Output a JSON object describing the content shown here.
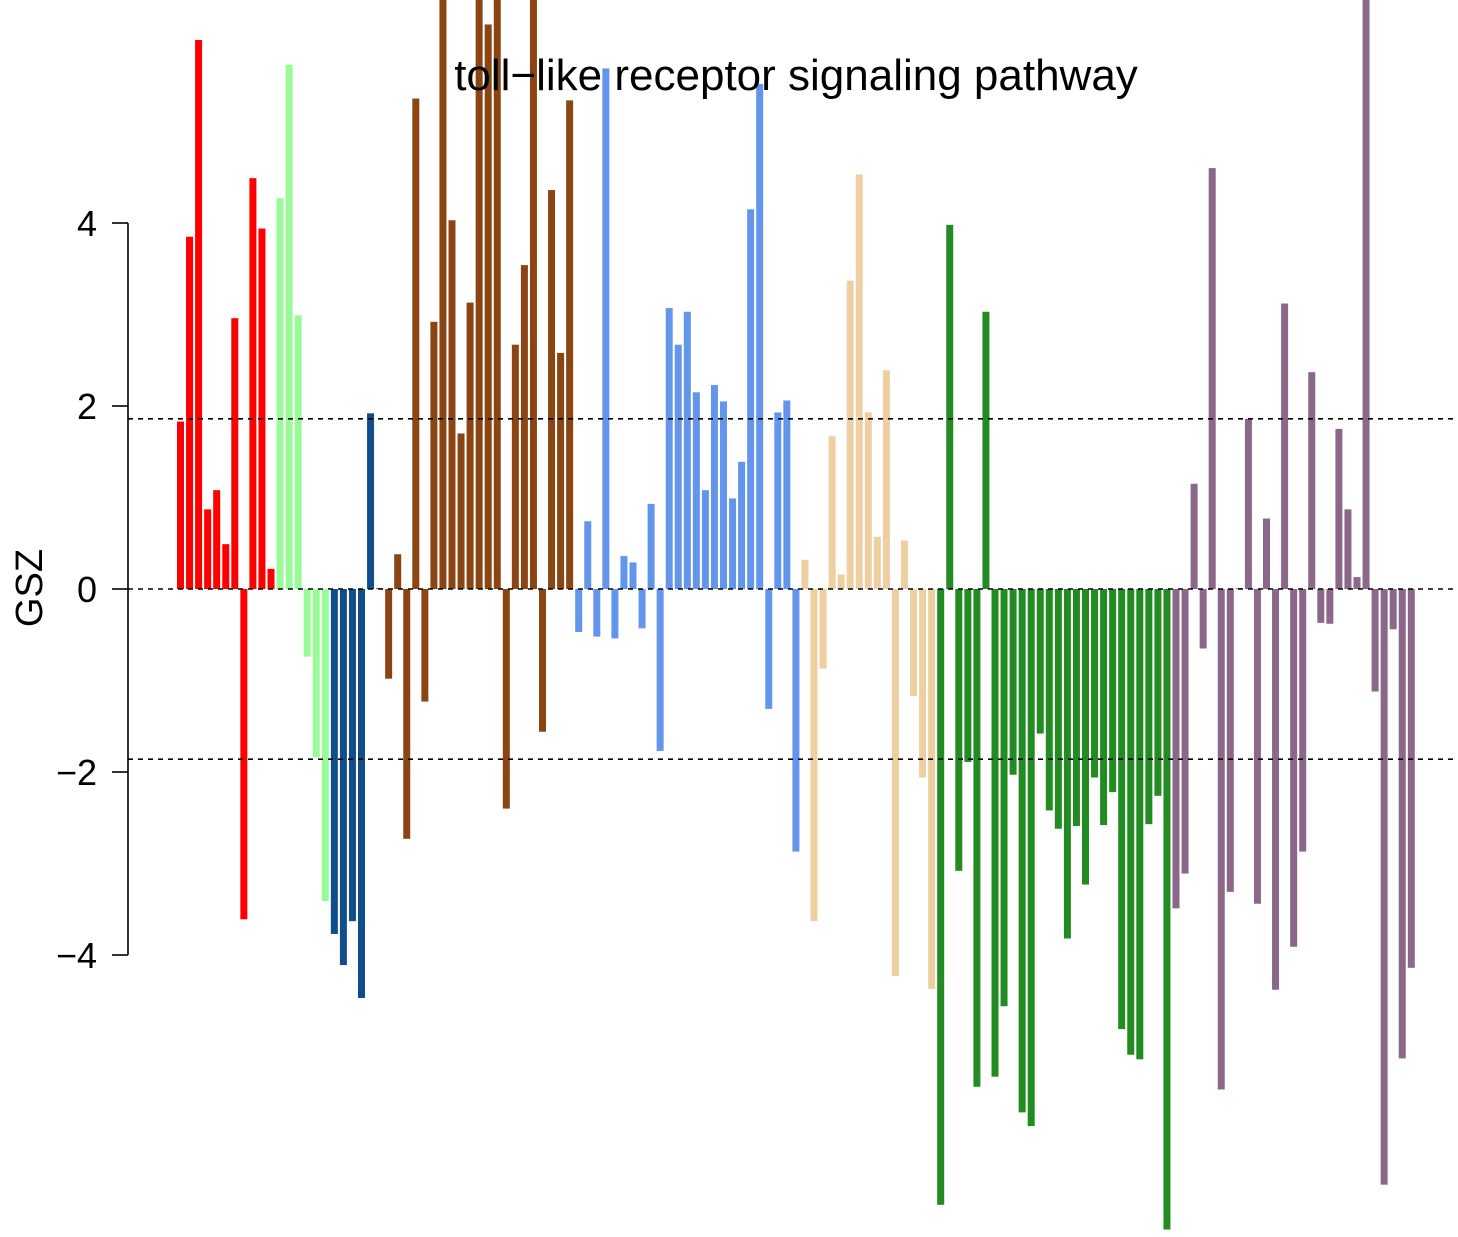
{
  "chart_data": {
    "type": "bar",
    "title": "toll−like receptor signaling pathway",
    "xlabel": "",
    "ylabel": "GSZ",
    "ylim": [
      -7,
      7
    ],
    "yticks": [
      -4,
      -2,
      0,
      2,
      4
    ],
    "ytick_labels": [
      "−4",
      "−2",
      "0",
      "2",
      "4"
    ],
    "reference_lines": [
      1.86,
      0,
      -1.86
    ],
    "grid": false,
    "legend": "none",
    "groups": [
      {
        "color": "#ff0000",
        "values": [
          1.83,
          3.85,
          6.0,
          0.87,
          1.08,
          0.49,
          2.96,
          -3.61,
          4.49,
          3.94,
          0.22
        ]
      },
      {
        "color": "#98fb98",
        "values": [
          4.27,
          5.73,
          2.99,
          -0.74,
          -1.84,
          -3.41
        ]
      },
      {
        "color": "#104e8b",
        "values": [
          -3.77,
          -4.11,
          -3.63,
          -4.47,
          1.92
        ]
      },
      {
        "color": "#8b4513",
        "values": [
          0.01,
          -0.98,
          0.38,
          -2.73,
          5.36,
          -1.23,
          2.92,
          6.5,
          4.03,
          1.7,
          3.13,
          6.5,
          6.17,
          6.5,
          -2.4,
          2.67,
          3.54,
          6.5,
          -1.56,
          4.36,
          2.58,
          5.34
        ]
      },
      {
        "color": "#6495ed",
        "values": [
          -0.47,
          0.74,
          -0.52,
          5.69,
          -0.54,
          0.36,
          0.29,
          -0.43,
          0.93,
          -1.77,
          3.07,
          2.67,
          3.03,
          2.15,
          1.08,
          2.23,
          2.05,
          0.99,
          1.39,
          4.15,
          5.52,
          -1.31,
          1.93,
          2.06,
          -2.87
        ]
      },
      {
        "color": "#eecfa1",
        "values": [
          0.32,
          -3.63,
          -0.87,
          1.67,
          0.16,
          3.37,
          4.53,
          1.93,
          0.57,
          2.39,
          -4.23,
          0.53,
          -1.17,
          -2.06,
          -4.37
        ]
      },
      {
        "color": "#228b22",
        "values": [
          -6.73,
          3.98,
          -3.08,
          -1.89,
          -5.44,
          3.03,
          -5.33,
          -4.56,
          -2.03,
          -5.72,
          -5.87,
          -1.58,
          -2.42,
          -2.62,
          -3.82,
          -2.59,
          -3.23,
          -2.06,
          -2.58,
          -2.22,
          -4.81,
          -5.09,
          -5.14,
          -2.57,
          -2.26,
          -7.0
        ]
      },
      {
        "color": "#8b6789",
        "values": [
          -3.49,
          -3.11,
          1.15,
          -0.65,
          4.6,
          -5.47,
          -3.31,
          0.01,
          1.86,
          -3.44,
          0.77,
          -4.38,
          3.12,
          -3.91,
          -2.87,
          2.37,
          -0.37,
          -0.38,
          1.75,
          0.87,
          0.13,
          6.5,
          -1.12,
          -6.51,
          -0.44,
          -5.13,
          -4.14
        ]
      }
    ]
  }
}
